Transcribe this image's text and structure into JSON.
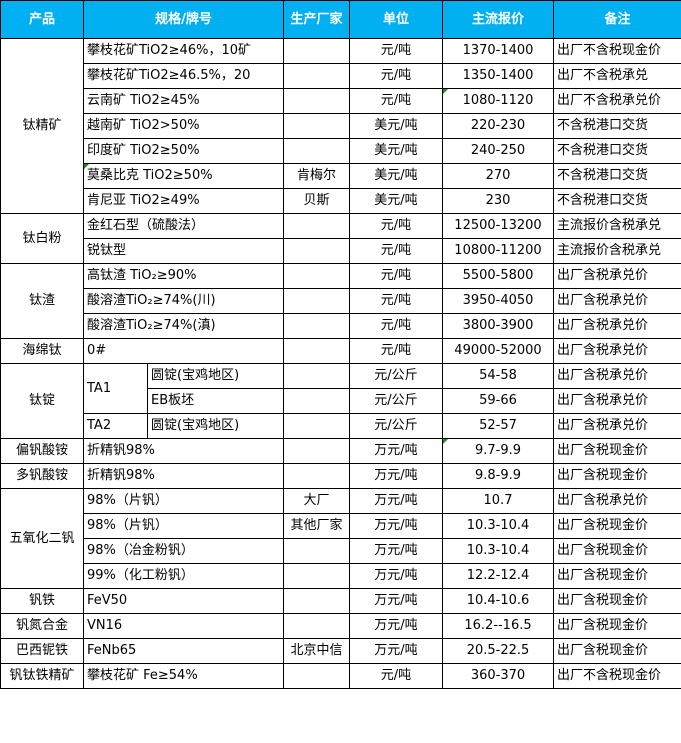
{
  "headers": [
    "产品",
    "规格/牌号",
    "生产厂家",
    "单位",
    "主流报价",
    "备注"
  ],
  "colors": {
    "header_bg": "#00b0f0",
    "header_text": "#ffffff",
    "comment_marker": "#1f8a1f"
  },
  "groups": [
    {
      "product": "钛精矿",
      "rows": [
        {
          "spec": "攀枝花矿TiO2≥46%，10矿",
          "maker": "",
          "unit": "元/吨",
          "price": "1370-1400",
          "note": "出厂不含税现金价"
        },
        {
          "spec": "攀枝花矿TiO2≥46.5%，20",
          "maker": "",
          "unit": "元/吨",
          "price": "1350-1400",
          "note": "出厂不含税承兑"
        },
        {
          "spec": "云南矿 TiO2≥45%",
          "maker": "",
          "unit": "元/吨",
          "price": "1080-1120",
          "note": "出厂不含税承兑价",
          "price_mark": true
        },
        {
          "spec": "越南矿 TiO2>50%",
          "maker": "",
          "unit": "美元/吨",
          "price": "220-230",
          "note": "不含税港口交货"
        },
        {
          "spec": "印度矿 TiO2≥50%",
          "maker": "",
          "unit": "美元/吨",
          "price": "240-250",
          "note": "不含税港口交货"
        },
        {
          "spec": "莫桑比克 TiO2≥50%",
          "maker": "肯梅尔",
          "unit": "美元/吨",
          "price": "270",
          "note": "不含税港口交货",
          "spec_mark": true
        },
        {
          "spec": "肯尼亚 TiO2≥49%",
          "maker": "贝斯",
          "unit": "美元/吨",
          "price": "230",
          "note": "不含税港口交货"
        }
      ]
    },
    {
      "product": "钛白粉",
      "rows": [
        {
          "spec": "金红石型（硫酸法）",
          "maker": "",
          "unit": "元/吨",
          "price": "12500-13200",
          "note": "主流报价含税承兑"
        },
        {
          "spec": "锐钛型",
          "maker": "",
          "unit": "元/吨",
          "price": "10800-11200",
          "note": "主流报价含税承兑"
        }
      ]
    },
    {
      "product": "钛渣",
      "rows": [
        {
          "spec": "高钛渣 TiO₂≥90%",
          "maker": "",
          "unit": "元/吨",
          "price": "5500-5800",
          "note": "出厂含税承兑价"
        },
        {
          "spec": "酸溶渣TiO₂≥74%(川)",
          "maker": "",
          "unit": "元/吨",
          "price": "3950-4050",
          "note": "出厂含税承兑价"
        },
        {
          "spec": "酸溶渣TiO₂≥74%(滇)",
          "maker": "",
          "unit": "元/吨",
          "price": "3800-3900",
          "note": "出厂含税承兑价"
        }
      ]
    },
    {
      "product": "海绵钛",
      "rows": [
        {
          "spec": "0#",
          "maker": "",
          "unit": "元/吨",
          "price": "49000-52000",
          "note": "出厂含税承兑价"
        }
      ]
    },
    {
      "product": "钛锭",
      "rows": [
        {
          "grade": "TA1",
          "grade_span": 2,
          "spec": "圆锭(宝鸡地区)",
          "maker": "",
          "unit": "元/公斤",
          "price": "54-58",
          "note": "出厂含税承兑价"
        },
        {
          "spec": "EB板坯",
          "maker": "",
          "unit": "元/公斤",
          "price": "59-66",
          "note": "出厂含税承兑价"
        },
        {
          "grade": "TA2",
          "grade_span": 1,
          "spec": "圆锭(宝鸡地区)",
          "maker": "",
          "unit": "元/公斤",
          "price": "52-57",
          "note": "出厂含税承兑价"
        }
      ]
    },
    {
      "product": "偏钒酸铵",
      "rows": [
        {
          "spec": "折精钒98%",
          "maker": "",
          "unit": "万元/吨",
          "price": "9.7-9.9",
          "note": "出厂含税现金价",
          "price_mark": true
        }
      ]
    },
    {
      "product": "多钒酸铵",
      "rows": [
        {
          "spec": "折精钒98%",
          "maker": "",
          "unit": "万元/吨",
          "price": "9.8-9.9",
          "note": "出厂含税现金价"
        }
      ]
    },
    {
      "product": "五氧化二钒",
      "rows": [
        {
          "spec": "98%（片钒）",
          "maker": "大厂",
          "unit": "万元/吨",
          "price": "10.7",
          "note": "出厂含税承兑价"
        },
        {
          "spec": "98%（片钒）",
          "maker": "其他厂家",
          "unit": "万元/吨",
          "price": "10.3-10.4",
          "note": "出厂含税现金价"
        },
        {
          "spec": "98%（冶金粉钒）",
          "maker": "",
          "unit": "万元/吨",
          "price": "10.3-10.4",
          "note": "出厂含税现金价"
        },
        {
          "spec": "99%（化工粉钒）",
          "maker": "",
          "unit": "万元/吨",
          "price": "12.2-12.4",
          "note": "出厂含税现金价"
        }
      ]
    },
    {
      "product": "钒铁",
      "rows": [
        {
          "spec": "FeV50",
          "maker": "",
          "unit": "万元/吨",
          "price": "10.4-10.6",
          "note": "出厂含税现金价"
        }
      ]
    },
    {
      "product": "钒氮合金",
      "rows": [
        {
          "spec": "VN16",
          "maker": "",
          "unit": "万元/吨",
          "price": "16.2--16.5",
          "note": "出厂含税现金价"
        }
      ]
    },
    {
      "product": "巴西铌铁",
      "rows": [
        {
          "spec": "FeNb65",
          "maker": "北京中信",
          "unit": "万元/吨",
          "price": "20.5-22.5",
          "note": "出厂含税现金价"
        }
      ]
    },
    {
      "product": "钒钛铁精矿",
      "rows": [
        {
          "spec": "攀枝花矿 Fe≥54%",
          "maker": "",
          "unit": "元/吨",
          "price": "360-370",
          "note": "出厂不含税现金价"
        }
      ]
    }
  ]
}
